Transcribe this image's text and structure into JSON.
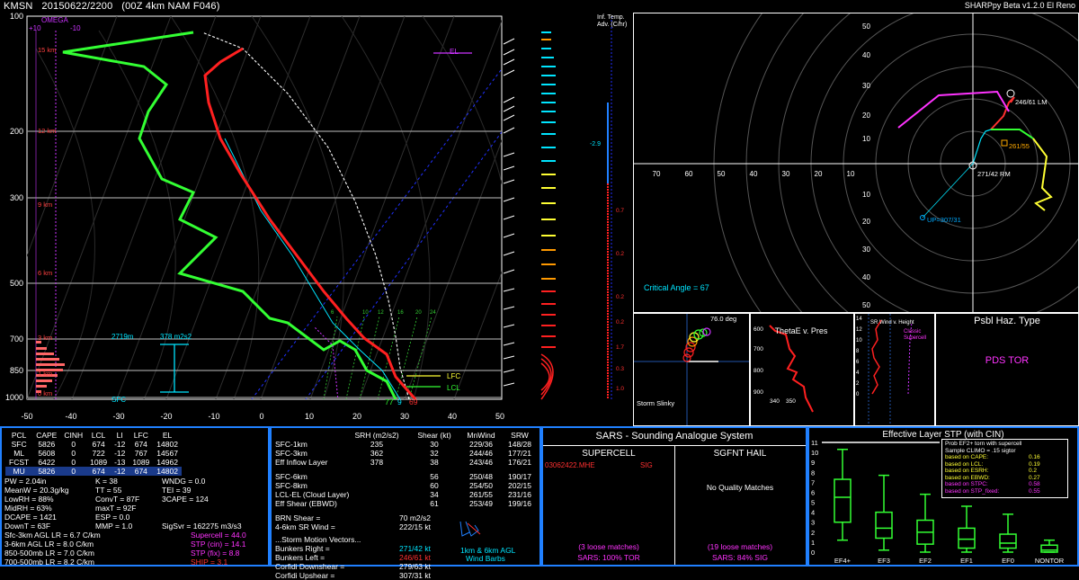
{
  "header": {
    "station": "KMSN",
    "time": "20150622/2200",
    "model": "(00Z 4km NAM F046)",
    "app": "SHARPpy Beta v1.2.0 El Reno"
  },
  "skewt": {
    "omega_label": "OMEGA",
    "omega_ticks": [
      "+10",
      "-10"
    ],
    "p_ticks": [
      "100",
      "200",
      "300",
      "500",
      "700",
      "850",
      "1000"
    ],
    "t_ticks": [
      "-50",
      "-40",
      "-30",
      "-20",
      "-10",
      "0",
      "10",
      "20",
      "30",
      "40",
      "50"
    ],
    "height_labels": [
      "15 km",
      "12 km",
      "9 km",
      "6 km",
      "3 km",
      "1 km",
      "0 km"
    ],
    "el_label": "EL",
    "lfc_label": "LFC",
    "lcl_label": "LCL",
    "sfc_label": "SFC",
    "depth_label": "2719m",
    "esrh_label": "378 m2s2",
    "sfc_temps": [
      "77",
      "9",
      "69"
    ],
    "mixing_ratios": [
      "6",
      "10",
      "12",
      "16",
      "20",
      "24"
    ],
    "adv_title": "Inf. Temp. Adv. (C/hr)",
    "adv_values": [
      "-2.9",
      "0.7",
      "0.2",
      "0.2",
      "0.2",
      "1.7",
      "0.3",
      "1.0"
    ],
    "colors": {
      "temp": "#ff2020",
      "dewp": "#33ff33",
      "virt": "#00e5ff",
      "parcel": "#ffffff"
    }
  },
  "hodograph": {
    "rings": [
      "10",
      "20",
      "30",
      "40",
      "50",
      "60",
      "70"
    ],
    "x_ticks": [
      "70",
      "60",
      "50",
      "40",
      "30",
      "20",
      "10"
    ],
    "y_ticks": [
      "50",
      "40",
      "30",
      "20",
      "10",
      "10",
      "20",
      "30",
      "40",
      "50"
    ],
    "lm_label": "246/61 LM",
    "rm_label": "271/42 RM",
    "mean_label": "261/55",
    "up_label": "UP=307/31",
    "critical_angle": "Critical Angle = 67"
  },
  "slinky": {
    "title": "Storm Slinky",
    "angle": "76.0 deg"
  },
  "thetae": {
    "title": "ThetaE v. Pres",
    "p_ticks": [
      "600",
      "700",
      "800",
      "900"
    ],
    "t_ticks": [
      "340",
      "350"
    ]
  },
  "srwind": {
    "label1": "SR Wind v. Height",
    "label2": "Classic Supercell"
  },
  "psbl": {
    "title": "Psbl Haz. Type",
    "value": "PDS TOR"
  },
  "parcels": {
    "headers": [
      "PCL",
      "CAPE",
      "CINH",
      "LCL",
      "LI",
      "LFC",
      "EL"
    ],
    "rows": [
      [
        "SFC",
        "5826",
        "0",
        "674",
        "-12",
        "674",
        "14802"
      ],
      [
        "ML",
        "5608",
        "0",
        "722",
        "-12",
        "767",
        "14567"
      ],
      [
        "FCST",
        "6422",
        "0",
        "1089",
        "-13",
        "1089",
        "14962"
      ],
      [
        "MU",
        "5826",
        "0",
        "674",
        "-12",
        "674",
        "14802"
      ]
    ]
  },
  "thermo": {
    "col1": [
      "PW = 2.04in",
      "MeanW = 20.3g/kg",
      "LowRH = 88%",
      "MidRH = 63%",
      "DCAPE = 1421",
      "DownT = 63F"
    ],
    "col2": [
      "K = 38",
      "TT = 55",
      "ConvT = 87F",
      "maxT = 92F",
      "ESP = 0.0",
      "MMP = 1.0"
    ],
    "col3": [
      "WNDG = 0.0",
      "TEI = 39",
      "3CAPE = 124"
    ],
    "sigsvr": "SigSvr = 162275 m3/s3",
    "lapse": [
      "Sfc-3km AGL LR = 6.7 C/km",
      "3-6km AGL LR = 8.0 C/km",
      "850-500mb LR = 7.0 C/km",
      "700-500mb LR = 8.2 C/km"
    ],
    "comp": [
      "Supercell = 44.0",
      "STP (cin) = 14.1",
      "STP (fix) = 8.8",
      "SHIP = 3.1"
    ]
  },
  "kinematics": {
    "headers": [
      "SRH (m2/s2)",
      "Shear (kt)",
      "MnWind",
      "SRW"
    ],
    "rows": [
      [
        "SFC-1km",
        "235",
        "30",
        "229/36",
        "148/28"
      ],
      [
        "SFC-3km",
        "362",
        "32",
        "244/46",
        "177/21"
      ],
      [
        "Eff Inflow Layer",
        "378",
        "38",
        "243/46",
        "176/21"
      ],
      [
        "",
        "",
        "",
        "",
        ""
      ],
      [
        "SFC-6km",
        "",
        "56",
        "250/48",
        "190/17"
      ],
      [
        "SFC-8km",
        "",
        "60",
        "254/50",
        "202/15"
      ],
      [
        "LCL-EL (Cloud Layer)",
        "",
        "34",
        "261/55",
        "231/16"
      ],
      [
        "Eff Shear (EBWD)",
        "",
        "61",
        "253/49",
        "199/16"
      ]
    ],
    "brn": [
      "BRN Shear =",
      "70 m2/s2"
    ],
    "sr46": [
      "4-6km SR Wind =",
      "222/15 kt"
    ],
    "motion_title": "...Storm Motion Vectors...",
    "motion": [
      [
        "Bunkers Right =",
        "271/42 kt"
      ],
      [
        "Bunkers Left =",
        "246/61 kt"
      ],
      [
        "Corfidi Downshear =",
        "279/63 kt"
      ],
      [
        "Corfidi Upshear =",
        "307/31 kt"
      ]
    ],
    "barb_label1": "1km & 6km AGL",
    "barb_label2": "Wind Barbs"
  },
  "sars": {
    "title": "SARS - Sounding Analogue System",
    "sup_title": "SUPERCELL",
    "hail_title": "SGFNT HAIL",
    "sup_match": "03062422.MHE",
    "sup_match_tag": "SIG",
    "hail_match": "No Quality Matches",
    "sup_loose": "(3 loose matches)",
    "hail_loose": "(19 loose matches)",
    "sup_pct": "SARS: 100% TOR",
    "hail_pct": "SARS: 84% SIG"
  },
  "stp": {
    "title": "Effective Layer STP (with CIN)",
    "y_ticks": [
      "11",
      "10",
      "9",
      "8",
      "7",
      "6",
      "5",
      "4",
      "3",
      "2",
      "1",
      "0"
    ],
    "categories": [
      "EF4+",
      "EF3",
      "EF2",
      "EF1",
      "EF0",
      "NONTOR"
    ],
    "legend_title": "Prob EF2+ torn with supercell",
    "legend_sub": "Sample CLIMO = .15 sigtor",
    "legend_rows": [
      [
        "based on CAPE:",
        "0.16"
      ],
      [
        "based on LCL:",
        "0.19"
      ],
      [
        "based on ESRH:",
        "0.2"
      ],
      [
        "based on EBWD:",
        "0.27"
      ],
      [
        "based on STPC:",
        "0.58"
      ],
      [
        "based on STP_fixed:",
        "0.55"
      ]
    ]
  },
  "chart_data": {
    "type": "box",
    "title": "Effective Layer STP (with CIN)",
    "categories": [
      "EF4+",
      "EF3",
      "EF2",
      "EF1",
      "EF0",
      "NONTOR"
    ],
    "boxes": [
      {
        "whisker_low": 1.2,
        "q1": 3.0,
        "median": 5.5,
        "q3": 7.3,
        "whisker_high": 10.3
      },
      {
        "whisker_low": 0.2,
        "q1": 1.4,
        "median": 2.4,
        "q3": 4.0,
        "whisker_high": 7.7
      },
      {
        "whisker_low": 0.0,
        "q1": 0.8,
        "median": 2.0,
        "q3": 3.2,
        "whisker_high": 5.8
      },
      {
        "whisker_low": 0.0,
        "q1": 0.4,
        "median": 1.3,
        "q3": 2.4,
        "whisker_high": 4.6
      },
      {
        "whisker_low": 0.0,
        "q1": 0.4,
        "median": 0.9,
        "q3": 1.8,
        "whisker_high": 3.8
      },
      {
        "whisker_low": 0.0,
        "q1": 0.0,
        "median": 0.2,
        "q3": 0.7,
        "whisker_high": 1.2
      }
    ],
    "ylim": [
      0,
      11
    ],
    "marker_value": 11
  }
}
